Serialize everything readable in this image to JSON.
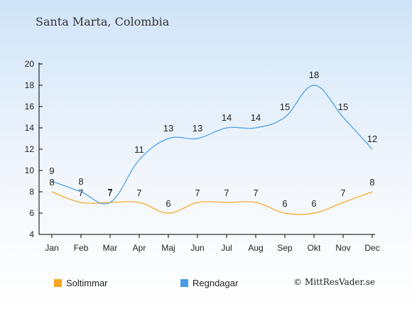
{
  "chart_title": "Santa Marta, Colombia",
  "credit": "© MittResVader.se",
  "colors": {
    "sun": "#f5a623",
    "rain": "#4a9be3",
    "axis": "#000000",
    "text": "#222222"
  },
  "chart_data": {
    "type": "line",
    "title": "Santa Marta, Colombia",
    "xlabel": "",
    "ylabel": "",
    "categories": [
      "Jan",
      "Feb",
      "Mar",
      "Apr",
      "Maj",
      "Jun",
      "Jul",
      "Aug",
      "Sep",
      "Okt",
      "Nov",
      "Dec"
    ],
    "ylim": [
      4,
      20
    ],
    "yticks": [
      4,
      6,
      8,
      10,
      12,
      14,
      16,
      18,
      20
    ],
    "grid": false,
    "legend_position": "bottom",
    "series": [
      {
        "name": "Soltimmar",
        "color": "#f5a623",
        "values": [
          8,
          7,
          7,
          7,
          6,
          7,
          7,
          7,
          6,
          6,
          7,
          8
        ]
      },
      {
        "name": "Regndagar",
        "color": "#4a9be3",
        "values": [
          9,
          8,
          7,
          11,
          13,
          13,
          14,
          14,
          15,
          18,
          15,
          12
        ]
      }
    ]
  }
}
